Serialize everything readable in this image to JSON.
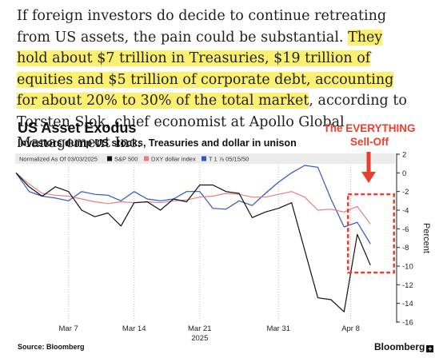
{
  "article": {
    "lead": "If foreign investors do decide to continue retreating from US assets, the pain could be substantial. ",
    "highlight": "They hold about $7 trillion in Treasuries, $19 trillion of equities and $5 trillion of corporate debt, accounting for about 20% to 30% of the total market",
    "tail": ", according to Torsten Slok, chief economist at Apollo Global Management Inc."
  },
  "callout": {
    "line1": "The EVERYTHING",
    "line2": "Sell-Off",
    "color": "#e8402e",
    "icon": "down-arrow-icon"
  },
  "footer": {
    "source": "Source: Bloomberg",
    "brand": "Bloomberg",
    "brand_mark": "+"
  },
  "colors": {
    "highlight": "#fdf071",
    "legend_bg": "#ececec",
    "sp500": "#111111",
    "dxy": "#e67f7f",
    "treasury": "#2f55c8",
    "box": "#e8402e"
  },
  "chart_data": {
    "type": "line",
    "title": "US Asset Exodus",
    "subtitle": "Investors dump US stocks, Treasuries and dollar in unison",
    "legend_note": "Normalized As Of 03/03/2025",
    "xlabel": "",
    "ylabel": "Percent",
    "ylim": [
      -16,
      2
    ],
    "yticks": [
      2,
      0,
      -2,
      -4,
      -6,
      -8,
      -10,
      -12,
      -14,
      -16
    ],
    "ytick_labels": [
      "2",
      "0",
      "-2",
      "-4",
      "-6",
      "-8",
      "-10",
      "-12",
      "-14",
      "-16"
    ],
    "x_ticks": [
      {
        "label": "Mar 7",
        "x": 4
      },
      {
        "label": "Mar 14",
        "x": 9
      },
      {
        "label": "Mar 21",
        "x": 14
      },
      {
        "label": "Mar 31",
        "x": 20
      },
      {
        "label": "Apr 8",
        "x": 25.5
      }
    ],
    "year_label": {
      "label": "2025",
      "x": 14
    },
    "xlim": [
      0,
      29
    ],
    "grid": "vertical dotted at date ticks",
    "legend_position": "top",
    "highlight_box": {
      "x": [
        25.3,
        28.8
      ],
      "y": [
        -10.7,
        -2.3
      ]
    },
    "series": [
      {
        "name": "S&P 500",
        "color": "#111111",
        "x": [
          0,
          1,
          2,
          3,
          4,
          5,
          6,
          7,
          8,
          9,
          10,
          11,
          12,
          13,
          14,
          15,
          16,
          17,
          18,
          19,
          20,
          21,
          22,
          23,
          24,
          25,
          26,
          27
        ],
        "y": [
          0,
          -1.5,
          -2.5,
          -1.5,
          -2.0,
          -4.0,
          -4.7,
          -4.3,
          -5.7,
          -3.2,
          -3.1,
          -4.0,
          -2.8,
          -3.1,
          -1.3,
          -1.3,
          -2.0,
          -2.2,
          -4.8,
          -4.2,
          -3.8,
          -3.2,
          -8.3,
          -13.4,
          -13.6,
          -14.9,
          -6.6,
          -9.9
        ]
      },
      {
        "name": "DXY dollar index",
        "color": "#e67f7f",
        "x": [
          0,
          1,
          2,
          3,
          4,
          5,
          6,
          7,
          8,
          9,
          10,
          11,
          12,
          13,
          14,
          15,
          16,
          17,
          18,
          19,
          20,
          21,
          22,
          23,
          24,
          25,
          26,
          27
        ],
        "y": [
          0,
          -1.2,
          -2.2,
          -2.4,
          -2.5,
          -2.8,
          -3.1,
          -3.3,
          -3.1,
          -3.2,
          -3.1,
          -3.2,
          -3.0,
          -2.9,
          -2.6,
          -2.5,
          -2.2,
          -2.3,
          -2.6,
          -2.6,
          -2.3,
          -2.0,
          -2.6,
          -4.0,
          -3.9,
          -4.2,
          -3.6,
          -5.5
        ]
      },
      {
        "name": "T 1 ⅞ 05/15/50",
        "color": "#2f55c8",
        "x": [
          0,
          1,
          2,
          3,
          4,
          5,
          6,
          7,
          8,
          9,
          10,
          11,
          12,
          13,
          14,
          15,
          16,
          17,
          18,
          19,
          20,
          21,
          22,
          23,
          24,
          25,
          26,
          27
        ],
        "y": [
          0,
          -2.0,
          -2.5,
          -2.7,
          -3.0,
          -2.0,
          -2.3,
          -2.4,
          -3.0,
          -2.0,
          -2.8,
          -3.0,
          -2.8,
          -2.0,
          -2.0,
          -3.8,
          -3.9,
          -3.0,
          -3.5,
          -2.2,
          -1.0,
          0,
          0.8,
          0.6,
          -2.8,
          -5.8,
          -5.3,
          -7.6
        ]
      }
    ]
  }
}
